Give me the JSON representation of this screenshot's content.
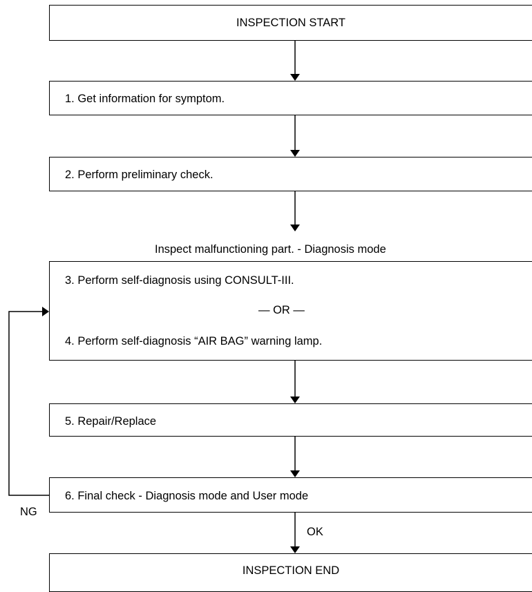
{
  "start": {
    "label": "INSPECTION START"
  },
  "steps": [
    {
      "text": "1. Get information for symptom."
    },
    {
      "text": "2. Perform preliminary check."
    },
    {
      "text": "3. Perform self-diagnosis using CONSULT-III."
    },
    {
      "text": "4. Perform self-diagnosis “AIR BAG” warning lamp."
    },
    {
      "text": "5. Repair/Replace"
    },
    {
      "text": "6. Final check - Diagnosis mode and User mode"
    }
  ],
  "section_label": "Inspect malfunctioning part. - Diagnosis mode",
  "or_separator": "— OR —",
  "branch_labels": {
    "ng": "NG",
    "ok": "OK"
  },
  "end": {
    "label": "INSPECTION END"
  }
}
